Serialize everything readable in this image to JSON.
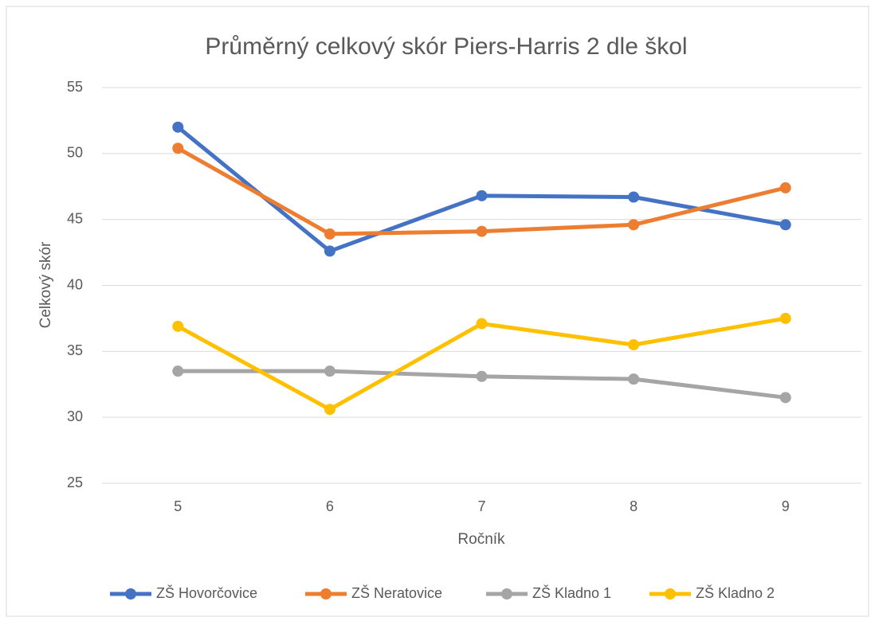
{
  "chart_data": {
    "type": "line",
    "title": "Průměrný celkový skór Piers-Harris 2 dle škol",
    "x_label": "Ročník",
    "y_label": "Celkový skór",
    "categories": [
      "5",
      "6",
      "7",
      "8",
      "9"
    ],
    "series": [
      {
        "name": "ZŠ Hovorčovice",
        "color": "#4472c4",
        "values": [
          52.0,
          42.6,
          46.8,
          46.7,
          44.6
        ]
      },
      {
        "name": "ZŠ Neratovice",
        "color": "#ed7d31",
        "values": [
          50.4,
          43.9,
          44.1,
          44.6,
          47.4
        ]
      },
      {
        "name": "ZŠ Kladno 1",
        "color": "#a5a5a5",
        "values": [
          33.5,
          33.5,
          33.1,
          32.9,
          31.5
        ]
      },
      {
        "name": "ZŠ Kladno 2",
        "color": "#ffc000",
        "values": [
          36.9,
          30.6,
          37.1,
          35.5,
          37.5
        ]
      }
    ],
    "ylim": [
      25,
      55
    ],
    "yticks": [
      25,
      30,
      35,
      40,
      45,
      50,
      55
    ],
    "grid": true,
    "legend": "bottom"
  }
}
